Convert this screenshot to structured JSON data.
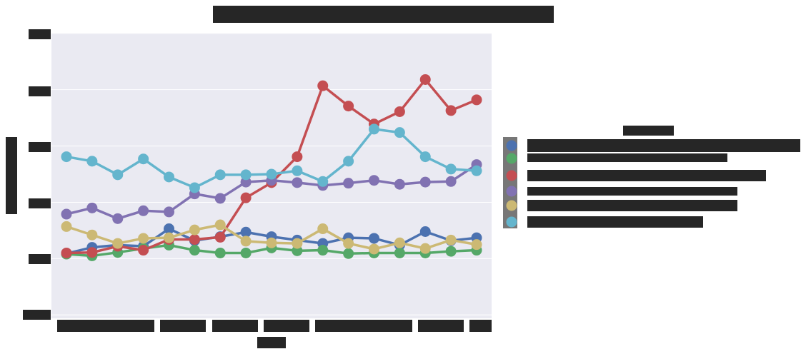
{
  "chart_data": {
    "type": "line",
    "categories": [
      null,
      null,
      null,
      null,
      null,
      null,
      null,
      null,
      null,
      null,
      null,
      null,
      null,
      null,
      null,
      null,
      null
    ],
    "series": [
      {
        "color": "#4c72b0",
        "values": [
          0.09,
          0.2,
          0.24,
          0.22,
          0.53,
          0.32,
          0.39,
          0.47,
          0.39,
          0.33,
          0.27,
          0.37,
          0.36,
          0.24,
          0.48,
          0.32,
          0.37
        ]
      },
      {
        "color": "#55a868",
        "values": [
          0.08,
          0.05,
          0.11,
          0.18,
          0.24,
          0.15,
          0.1,
          0.1,
          0.19,
          0.14,
          0.15,
          0.09,
          0.1,
          0.1,
          0.1,
          0.13,
          0.15
        ]
      },
      {
        "color": "#c44e52",
        "values": [
          0.1,
          0.11,
          0.22,
          0.15,
          0.34,
          0.34,
          0.38,
          1.08,
          1.35,
          1.81,
          3.07,
          2.71,
          2.39,
          2.61,
          3.18,
          2.63,
          2.82
        ]
      },
      {
        "color": "#8172b2",
        "values": [
          0.79,
          0.9,
          0.71,
          0.85,
          0.83,
          1.15,
          1.07,
          1.36,
          1.39,
          1.35,
          1.3,
          1.34,
          1.39,
          1.32,
          1.36,
          1.37,
          1.67
        ]
      },
      {
        "color": "#ccb974",
        "values": [
          0.57,
          0.42,
          0.27,
          0.36,
          0.37,
          0.51,
          0.6,
          0.31,
          0.28,
          0.27,
          0.53,
          0.27,
          0.17,
          0.28,
          0.18,
          0.33,
          0.25
        ]
      },
      {
        "color": "#64b5cd",
        "values": [
          1.81,
          1.73,
          1.49,
          1.77,
          1.45,
          1.26,
          1.49,
          1.49,
          1.5,
          1.56,
          1.37,
          1.73,
          2.3,
          2.24,
          1.81,
          1.59,
          1.56
        ]
      }
    ],
    "ylim": [
      -1.06,
      4.01
    ],
    "yticks": [
      -1,
      0,
      1,
      2,
      3,
      4
    ],
    "grid": true
  }
}
